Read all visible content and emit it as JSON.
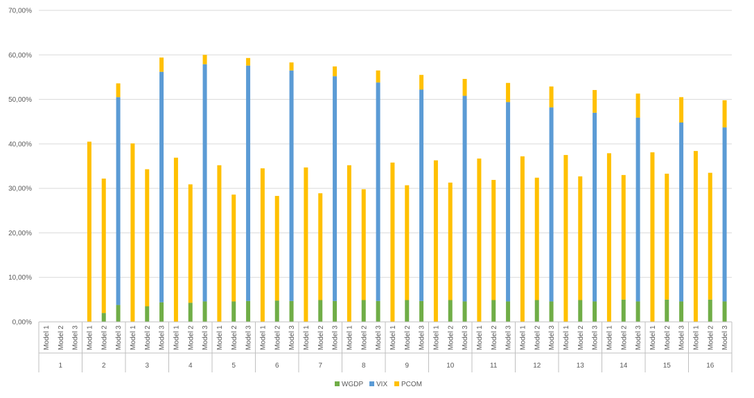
{
  "chart_data": {
    "type": "bar",
    "stacked": true,
    "title": "",
    "xlabel": "",
    "ylabel": "",
    "ylim": [
      0,
      70
    ],
    "y_ticks": [
      0,
      10,
      20,
      30,
      40,
      50,
      60,
      70
    ],
    "y_tick_labels": [
      "0,00%",
      "10,00%",
      "20,00%",
      "30,00%",
      "40,00%",
      "50,00%",
      "60,00%",
      "70,00%"
    ],
    "groups": [
      "1",
      "2",
      "3",
      "4",
      "5",
      "6",
      "7",
      "8",
      "9",
      "10",
      "11",
      "12",
      "13",
      "14",
      "15",
      "16"
    ],
    "models": [
      "Model 1",
      "Model 2",
      "Model 3"
    ],
    "legend": {
      "placement": "bottom"
    },
    "grid": true,
    "series": [
      {
        "name": "WGDP",
        "color": "#70ad47",
        "values": [
          [
            0,
            0,
            0
          ],
          [
            0,
            2.0,
            3.8
          ],
          [
            0,
            3.5,
            4.4
          ],
          [
            0,
            4.3,
            4.6
          ],
          [
            0,
            4.6,
            4.7
          ],
          [
            0,
            4.8,
            4.7
          ],
          [
            0,
            4.9,
            4.7
          ],
          [
            0,
            4.9,
            4.7
          ],
          [
            0,
            4.9,
            4.7
          ],
          [
            0,
            4.9,
            4.6
          ],
          [
            0,
            4.9,
            4.6
          ],
          [
            0,
            4.9,
            4.6
          ],
          [
            0,
            4.9,
            4.6
          ],
          [
            0,
            5.0,
            4.6
          ],
          [
            0,
            5.0,
            4.6
          ],
          [
            0,
            5.0,
            4.6
          ]
        ]
      },
      {
        "name": "VIX",
        "color": "#5b9bd5",
        "values": [
          [
            0,
            0,
            0
          ],
          [
            0,
            0,
            46.7
          ],
          [
            0,
            0,
            51.8
          ],
          [
            0,
            0,
            53.3
          ],
          [
            0,
            0,
            52.9
          ],
          [
            0,
            0,
            51.8
          ],
          [
            0,
            0,
            50.5
          ],
          [
            0,
            0,
            49.1
          ],
          [
            0,
            0,
            47.5
          ],
          [
            0,
            0,
            46.2
          ],
          [
            0,
            0,
            44.8
          ],
          [
            0,
            0,
            43.6
          ],
          [
            0,
            0,
            42.4
          ],
          [
            0,
            0,
            41.3
          ],
          [
            0,
            0,
            40.2
          ],
          [
            0,
            0,
            39.1
          ]
        ]
      },
      {
        "name": "PCOM",
        "color": "#ffc000",
        "values": [
          [
            0,
            0,
            0
          ],
          [
            40.5,
            30.2,
            3.1
          ],
          [
            40.1,
            30.8,
            3.2
          ],
          [
            36.9,
            26.6,
            2.1
          ],
          [
            35.2,
            24.0,
            1.7
          ],
          [
            34.5,
            23.5,
            1.8
          ],
          [
            34.7,
            24.0,
            2.2
          ],
          [
            35.2,
            24.9,
            2.7
          ],
          [
            35.8,
            25.8,
            3.3
          ],
          [
            36.3,
            26.4,
            3.8
          ],
          [
            36.7,
            27.0,
            4.3
          ],
          [
            37.2,
            27.5,
            4.7
          ],
          [
            37.5,
            27.8,
            5.1
          ],
          [
            37.9,
            28.0,
            5.4
          ],
          [
            38.1,
            28.3,
            5.7
          ],
          [
            38.4,
            28.5,
            6.1
          ]
        ]
      }
    ]
  }
}
